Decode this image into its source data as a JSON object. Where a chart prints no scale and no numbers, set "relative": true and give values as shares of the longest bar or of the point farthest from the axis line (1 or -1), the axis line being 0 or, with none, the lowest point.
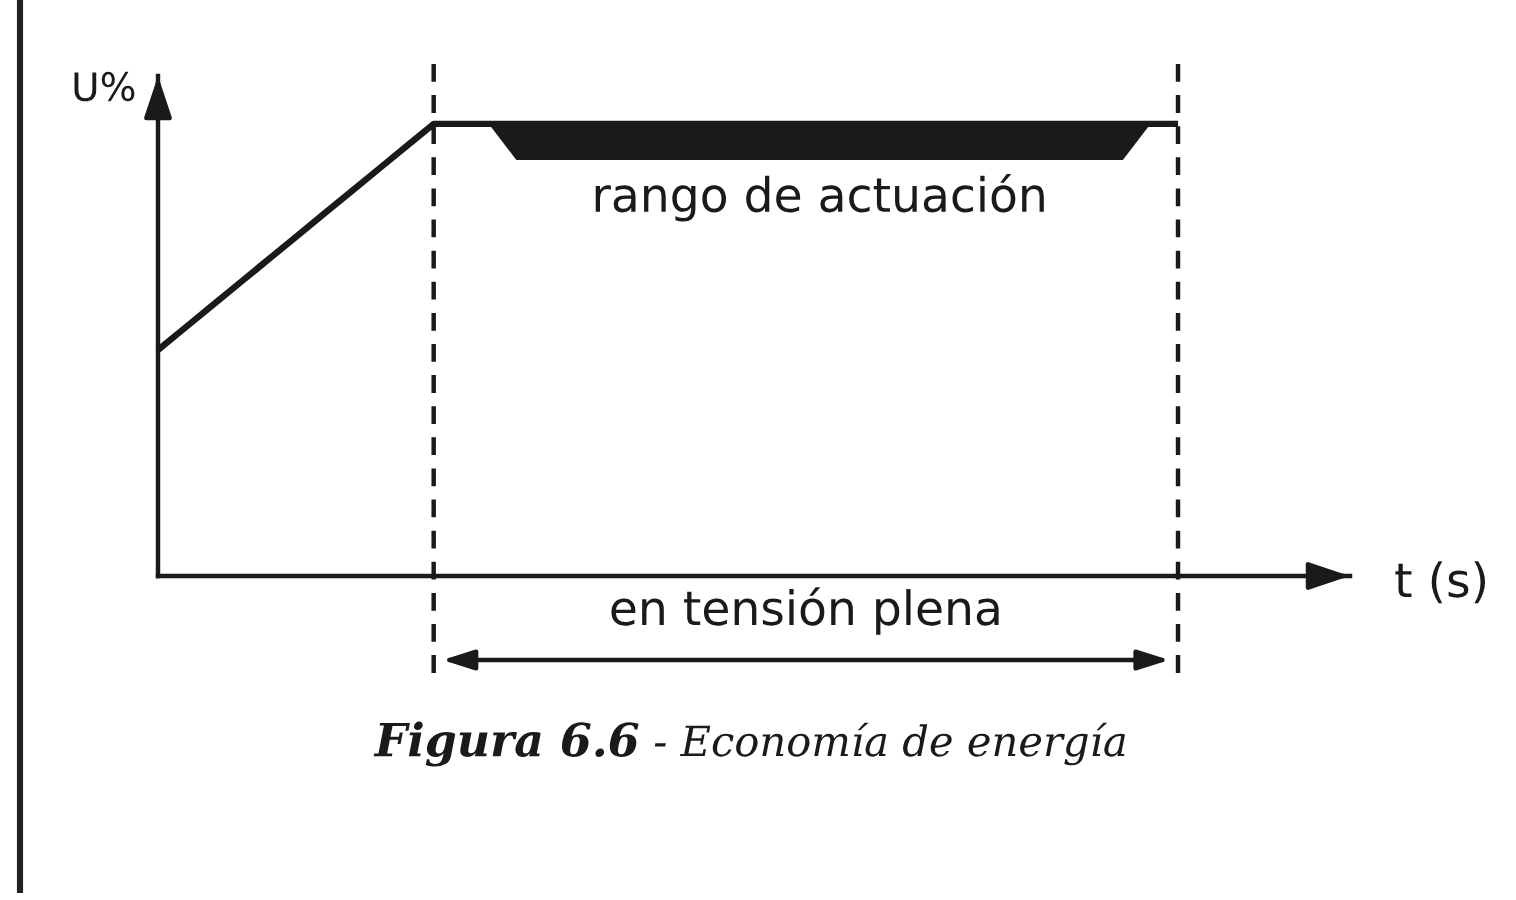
{
  "chart_data": {
    "type": "line",
    "title": "Figura 6.6",
    "subtitle": "- Economía de energía",
    "xlabel": "t (s)",
    "ylabel": "U%",
    "relative": true,
    "categories": [
      null,
      null,
      null,
      null,
      null,
      null,
      null,
      null,
      null,
      null,
      null,
      null,
      null,
      null,
      null,
      null,
      null,
      null,
      null,
      null,
      null,
      null,
      null,
      null,
      null,
      null,
      null,
      null,
      null,
      null,
      null,
      null,
      null,
      null,
      null,
      null,
      null,
      null
    ],
    "series": [
      {
        "color": "#1a1a1a",
        "values": [
          0.5,
          0.55,
          0.6,
          0.65,
          0.7,
          0.75,
          0.8,
          0.85,
          0.9,
          0.95,
          1,
          1,
          1,
          1,
          1,
          1,
          1,
          1,
          1,
          1,
          1,
          1,
          1,
          1,
          1,
          1,
          1,
          1,
          1,
          1,
          1,
          1,
          1,
          1,
          1,
          1,
          1,
          1
        ],
        "lower": [
          null,
          null,
          null,
          null,
          null,
          null,
          null,
          null,
          null,
          null,
          null,
          null,
          1,
          0.92,
          0.92,
          0.92,
          0.92,
          0.92,
          0.92,
          0.92,
          0.92,
          0.92,
          0.92,
          0.92,
          0.92,
          0.92,
          0.92,
          0.92,
          0.92,
          0.92,
          0.92,
          0.92,
          0.92,
          0.92,
          0.92,
          0.92,
          1,
          null
        ],
        "upper": [
          null,
          null,
          null,
          null,
          null,
          null,
          null,
          null,
          null,
          null,
          null,
          null,
          1,
          1,
          1,
          1,
          1,
          1,
          1,
          1,
          1,
          1,
          1,
          1,
          1,
          1,
          1,
          1,
          1,
          1,
          1,
          1,
          1,
          1,
          1,
          1,
          1,
          null
        ]
      }
    ],
    "annotations": [
      "rango de actuación",
      "en tensión plena"
    ]
  }
}
